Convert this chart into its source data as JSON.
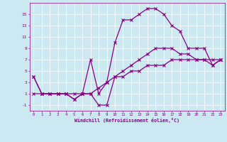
{
  "title": "",
  "xlabel": "Windchill (Refroidissement éolien,°C)",
  "ylabel": "",
  "bg_color": "#cce8f0",
  "line_color": "#880088",
  "x": [
    0,
    1,
    2,
    3,
    4,
    5,
    6,
    7,
    8,
    9,
    10,
    11,
    12,
    13,
    14,
    15,
    16,
    17,
    18,
    19,
    20,
    21,
    22,
    23
  ],
  "line1": [
    4,
    1,
    1,
    1,
    1,
    0,
    1,
    7,
    1,
    3,
    10,
    14,
    14,
    15,
    16,
    16,
    15,
    13,
    12,
    9,
    9,
    9,
    6,
    7
  ],
  "line2": [
    4,
    1,
    1,
    1,
    1,
    0,
    1,
    1,
    -1,
    -1,
    4,
    5,
    6,
    7,
    8,
    9,
    9,
    9,
    8,
    8,
    7,
    7,
    6,
    7
  ],
  "line3": [
    1,
    1,
    1,
    1,
    1,
    1,
    1,
    1,
    2,
    3,
    4,
    4,
    5,
    5,
    6,
    6,
    6,
    7,
    7,
    7,
    7,
    7,
    7,
    7
  ],
  "xlim": [
    -0.5,
    23.5
  ],
  "ylim": [
    -2,
    17
  ],
  "yticks": [
    -1,
    1,
    3,
    5,
    7,
    9,
    11,
    13,
    15
  ],
  "xticks": [
    0,
    1,
    2,
    3,
    4,
    5,
    6,
    7,
    8,
    9,
    10,
    11,
    12,
    13,
    14,
    15,
    16,
    17,
    18,
    19,
    20,
    21,
    22,
    23
  ],
  "figsize": [
    3.2,
    2.0
  ],
  "dpi": 100
}
